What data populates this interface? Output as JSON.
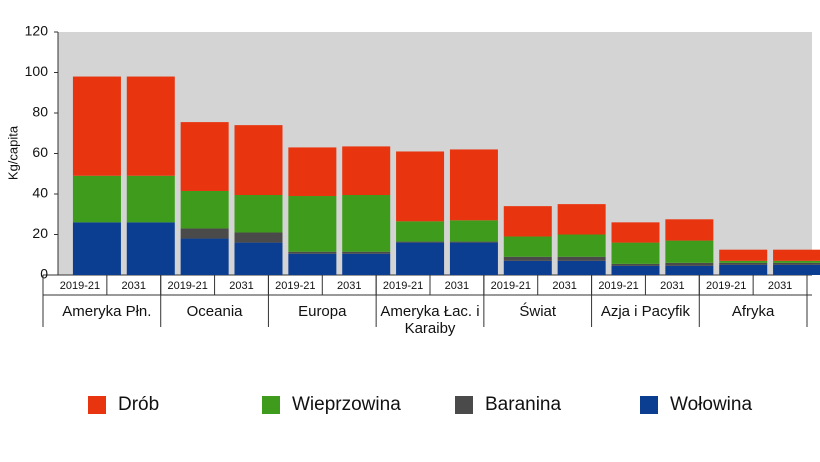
{
  "chart_data": {
    "type": "stacked_bar",
    "y_label": "Kg/capita",
    "categories": [
      "2019-21",
      "2031",
      "2019-21",
      "2031",
      "2019-21",
      "2031",
      "2019-21",
      "2031",
      "2019-21",
      "2031",
      "2019-21",
      "2031",
      "2019-21",
      "2031"
    ],
    "groups": [
      "Ameryka Płn.",
      "Oceania",
      "Europa",
      "Ameryka Łac. i Karaiby",
      "Świat",
      "Azja i Pacyfik",
      "Afryka"
    ],
    "series": [
      {
        "name": "Drób",
        "color": "#e8340f",
        "values": [
          49,
          49,
          34,
          34.5,
          24,
          24,
          34.5,
          35,
          15,
          15,
          10,
          10.5,
          5.5,
          5.5
        ]
      },
      {
        "name": "Wieprzowina",
        "color": "#3e9b1b",
        "values": [
          23,
          23,
          18.5,
          18.5,
          27.5,
          28,
          10,
          10.5,
          10,
          11,
          10.5,
          11,
          1,
          1
        ]
      },
      {
        "name": "Baranina",
        "color": "#4a4a4a",
        "values": [
          0,
          0,
          5,
          5,
          1,
          1,
          0.5,
          0.5,
          2,
          2,
          1,
          1.5,
          1,
          1
        ]
      },
      {
        "name": "Wołowina",
        "color": "#0b3d91",
        "values": [
          26,
          26,
          18,
          16,
          10.5,
          10.5,
          16,
          16,
          7,
          7,
          4.5,
          4.5,
          5,
          5
        ]
      }
    ],
    "ylim": [
      0,
      120
    ],
    "yticks": [
      0,
      20,
      40,
      60,
      80,
      100,
      120
    ],
    "grid": false
  }
}
